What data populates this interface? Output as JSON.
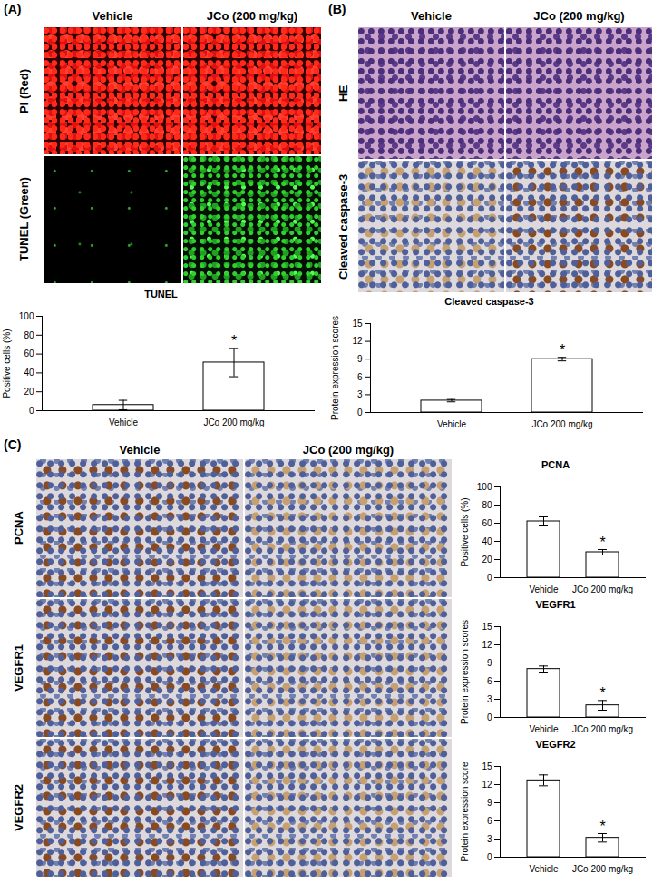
{
  "panels": [
    {
      "label": "(A)",
      "columns": [
        "Vehicle",
        "JCo (200 mg/kg)"
      ],
      "rows": [
        "PI (Red)",
        "TUNEL (Green)"
      ]
    },
    {
      "label": "(B)",
      "columns": [
        "Vehicle",
        "JCo (200 mg/kg)"
      ],
      "rows": [
        "HE",
        "Cleaved caspase-3"
      ]
    },
    {
      "label": "(C)",
      "columns": [
        "Vehicle",
        "JCo (200 mg/kg)"
      ],
      "rows": [
        "PCNA",
        "VEGFR1",
        "VEGFR2"
      ]
    }
  ],
  "chart_data": [
    {
      "type": "bar",
      "title": "TUNEL",
      "y_label": "Positive cells (%)",
      "categories": [
        "Vehicle",
        "JCo 200 mg/kg"
      ],
      "values": [
        6,
        51
      ],
      "errors": [
        5,
        15
      ],
      "color": "#ffffff",
      "ylim": [
        0,
        100
      ],
      "yticks": [
        0,
        20,
        40,
        60,
        80,
        100
      ],
      "annotations": [
        {
          "category": "JCo 200 mg/kg",
          "text": "*"
        }
      ]
    },
    {
      "type": "bar",
      "title": "Cleaved caspase-3",
      "y_label": "Protein expression scores",
      "categories": [
        "Vehicle",
        "JCo 200 mg/kg"
      ],
      "values": [
        2,
        9
      ],
      "errors": [
        0.2,
        0.3
      ],
      "color": "#ffffff",
      "ylim": [
        0,
        15
      ],
      "yticks": [
        0,
        3,
        6,
        9,
        12,
        15
      ],
      "annotations": [
        {
          "category": "JCo 200 mg/kg",
          "text": "*"
        }
      ]
    },
    {
      "type": "bar",
      "title": "PCNA",
      "y_label": "Positive cells (%)",
      "categories": [
        "Vehicle",
        "JCo 200 mg/kg"
      ],
      "values": [
        62,
        28
      ],
      "errors": [
        5,
        3
      ],
      "color": "#ffffff",
      "ylim": [
        0,
        100
      ],
      "yticks": [
        0,
        20,
        40,
        60,
        80,
        100
      ],
      "annotations": [
        {
          "category": "JCo 200 mg/kg",
          "text": "*"
        }
      ]
    },
    {
      "type": "bar",
      "title": "VEGFR1",
      "y_label": "Protein expression scores",
      "categories": [
        "Vehicle",
        "JCo 200 mg/kg"
      ],
      "values": [
        8,
        2
      ],
      "errors": [
        0.5,
        0.8
      ],
      "color": "#ffffff",
      "ylim": [
        0,
        15
      ],
      "yticks": [
        0,
        3,
        6,
        9,
        12,
        15
      ],
      "annotations": [
        {
          "category": "JCo 200 mg/kg",
          "text": "*"
        }
      ]
    },
    {
      "type": "bar",
      "title": "VEGFR2",
      "y_label": "Protein expression score",
      "categories": [
        "Vehicle",
        "JCo 200 mg/kg"
      ],
      "values": [
        12.7,
        3.2
      ],
      "errors": [
        0.9,
        0.7
      ],
      "color": "#ffffff",
      "ylim": [
        0,
        15
      ],
      "yticks": [
        0,
        3,
        6,
        9,
        12,
        15
      ],
      "annotations": [
        {
          "category": "JCo 200 mg/kg",
          "text": "*"
        }
      ]
    }
  ]
}
